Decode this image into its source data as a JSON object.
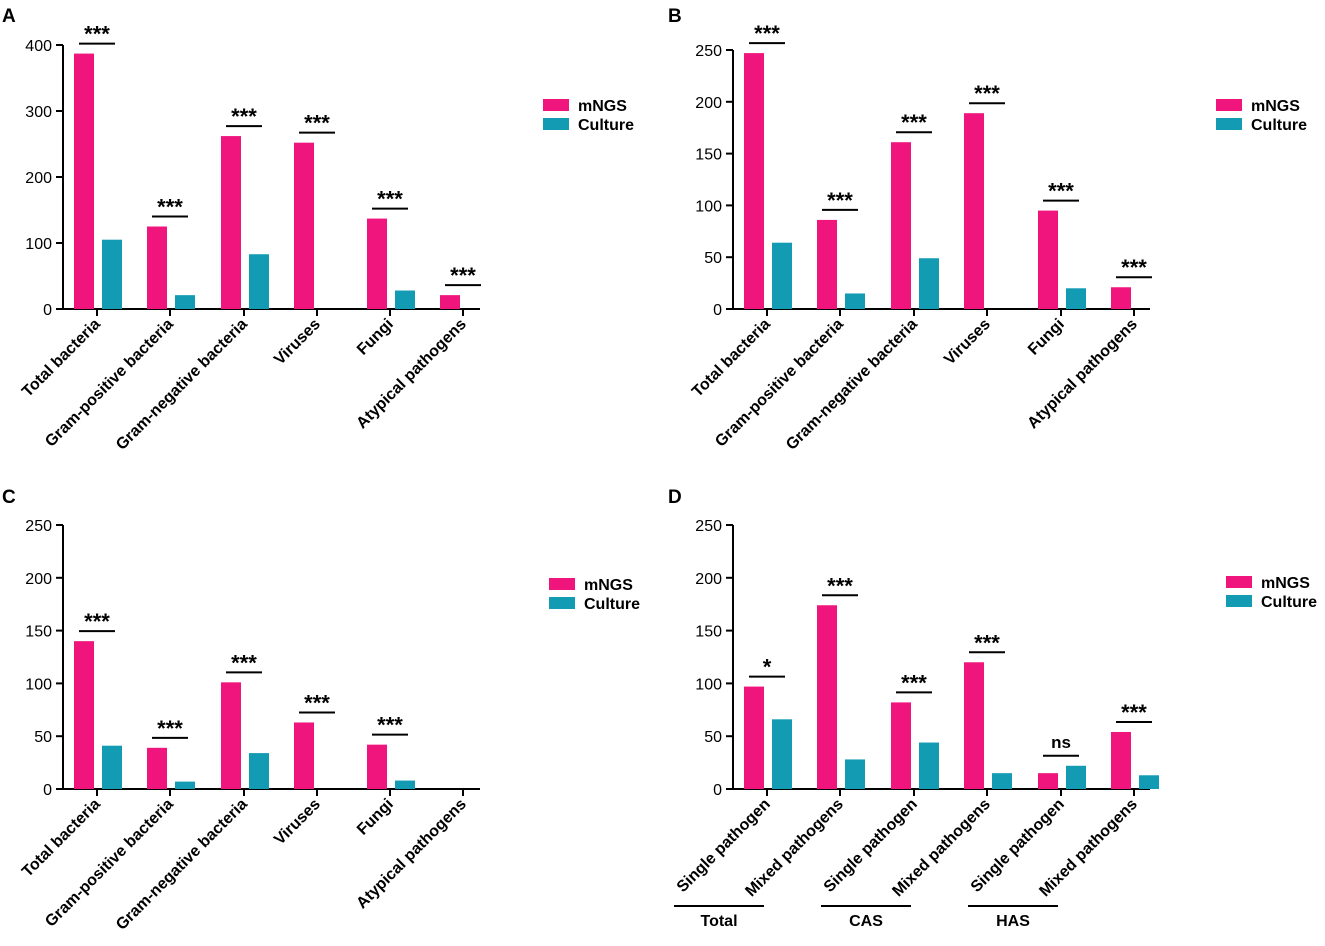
{
  "colors": {
    "mngs": "#f0147d",
    "culture": "#149bb4",
    "axis": "#000000"
  },
  "chart_data": [
    {
      "panel": "A",
      "type": "bar",
      "categories": [
        "Total bacteria",
        "Gram-positive bacteria",
        "Gram-negative bacteria",
        "Viruses",
        "Fungi",
        "Atypical pathogens"
      ],
      "series": [
        {
          "name": "mNGS",
          "values": [
            387,
            125,
            262,
            252,
            137,
            21
          ]
        },
        {
          "name": "Culture",
          "values": [
            105,
            21,
            83,
            0,
            28,
            0
          ]
        }
      ],
      "significance": [
        "***",
        "***",
        "***",
        "***",
        "***",
        "***"
      ],
      "yticks": [
        0,
        100,
        200,
        300,
        400
      ],
      "ylim": [
        0,
        410
      ],
      "legend": "right"
    },
    {
      "panel": "B",
      "type": "bar",
      "categories": [
        "Total bacteria",
        "Gram-positive bacteria",
        "Gram-negative bacteria",
        "Viruses",
        "Fungi",
        "Atypical pathogens"
      ],
      "series": [
        {
          "name": "mNGS",
          "values": [
            247,
            86,
            161,
            189,
            95,
            21
          ]
        },
        {
          "name": "Culture",
          "values": [
            64,
            15,
            49,
            0,
            20,
            0
          ]
        }
      ],
      "significance": [
        "***",
        "***",
        "***",
        "***",
        "***",
        "***"
      ],
      "yticks": [
        0,
        50,
        100,
        150,
        200,
        250
      ],
      "ylim": [
        0,
        258
      ],
      "legend": "right"
    },
    {
      "panel": "C",
      "type": "bar",
      "categories": [
        "Total bacteria",
        "Gram-positive bacteria",
        "Gram-negative bacteria",
        "Viruses",
        "Fungi",
        "Atypical pathogens"
      ],
      "series": [
        {
          "name": "mNGS",
          "values": [
            140,
            39,
            101,
            63,
            42,
            0
          ]
        },
        {
          "name": "Culture",
          "values": [
            41,
            7,
            34,
            0,
            8,
            0
          ]
        }
      ],
      "significance": [
        "***",
        "***",
        "***",
        "***",
        "***",
        ""
      ],
      "yticks": [
        0,
        50,
        100,
        150,
        200,
        250
      ],
      "ylim": [
        0,
        258
      ],
      "legend": "right"
    },
    {
      "panel": "D",
      "type": "bar",
      "categories": [
        "Single pathogen",
        "Mixed pathogens",
        "Single pathogen",
        "Mixed pathogens",
        "Single pathogen",
        "Mixed pathogens"
      ],
      "series": [
        {
          "name": "mNGS",
          "values": [
            97,
            174,
            82,
            120,
            15,
            54
          ]
        },
        {
          "name": "Culture",
          "values": [
            66,
            28,
            44,
            15,
            22,
            13
          ]
        }
      ],
      "significance": [
        "*",
        "***",
        "***",
        "***",
        "ns",
        "***"
      ],
      "groups": [
        "Total",
        "CAS",
        "HAS"
      ],
      "yticks": [
        0,
        50,
        100,
        150,
        200,
        250
      ],
      "ylim": [
        0,
        258
      ],
      "legend": "right"
    }
  ]
}
